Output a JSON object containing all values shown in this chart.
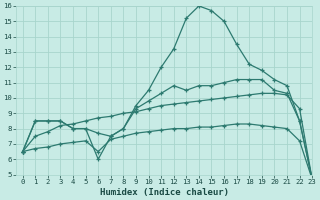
{
  "xlabel": "Humidex (Indice chaleur)",
  "x": [
    0,
    1,
    2,
    3,
    4,
    5,
    6,
    7,
    8,
    9,
    10,
    11,
    12,
    13,
    14,
    15,
    16,
    17,
    18,
    19,
    20,
    21,
    22,
    23
  ],
  "line1": [
    6.5,
    8.5,
    8.5,
    8.5,
    8.0,
    8.0,
    6.0,
    7.5,
    8.0,
    9.5,
    10.5,
    12.0,
    13.2,
    15.2,
    16.0,
    15.7,
    15.0,
    13.5,
    12.2,
    11.8,
    11.2,
    10.8,
    8.5,
    4.7
  ],
  "line2": [
    6.5,
    8.5,
    8.5,
    8.5,
    8.0,
    8.0,
    7.7,
    7.5,
    8.0,
    9.3,
    9.8,
    10.3,
    10.8,
    10.5,
    10.8,
    10.8,
    11.0,
    11.2,
    11.2,
    11.2,
    10.5,
    10.3,
    8.5,
    4.7
  ],
  "line3": [
    6.5,
    7.5,
    7.8,
    8.2,
    8.3,
    8.5,
    8.7,
    8.8,
    9.0,
    9.1,
    9.3,
    9.5,
    9.6,
    9.7,
    9.8,
    9.9,
    10.0,
    10.1,
    10.2,
    10.3,
    10.3,
    10.2,
    9.3,
    4.7
  ],
  "line4": [
    6.5,
    6.7,
    6.8,
    7.0,
    7.1,
    7.2,
    6.5,
    7.3,
    7.5,
    7.7,
    7.8,
    7.9,
    8.0,
    8.0,
    8.1,
    8.1,
    8.2,
    8.3,
    8.3,
    8.2,
    8.1,
    8.0,
    7.2,
    4.7
  ],
  "bg_color": "#c8ebe5",
  "grid_color": "#a8d5cc",
  "line_color": "#2d7a70",
  "ylim": [
    5,
    16
  ],
  "xlim": [
    -0.5,
    23
  ],
  "yticks": [
    5,
    6,
    7,
    8,
    9,
    10,
    11,
    12,
    13,
    14,
    15,
    16
  ],
  "xticks": [
    0,
    1,
    2,
    3,
    4,
    5,
    6,
    7,
    8,
    9,
    10,
    11,
    12,
    13,
    14,
    15,
    16,
    17,
    18,
    19,
    20,
    21,
    22,
    23
  ]
}
